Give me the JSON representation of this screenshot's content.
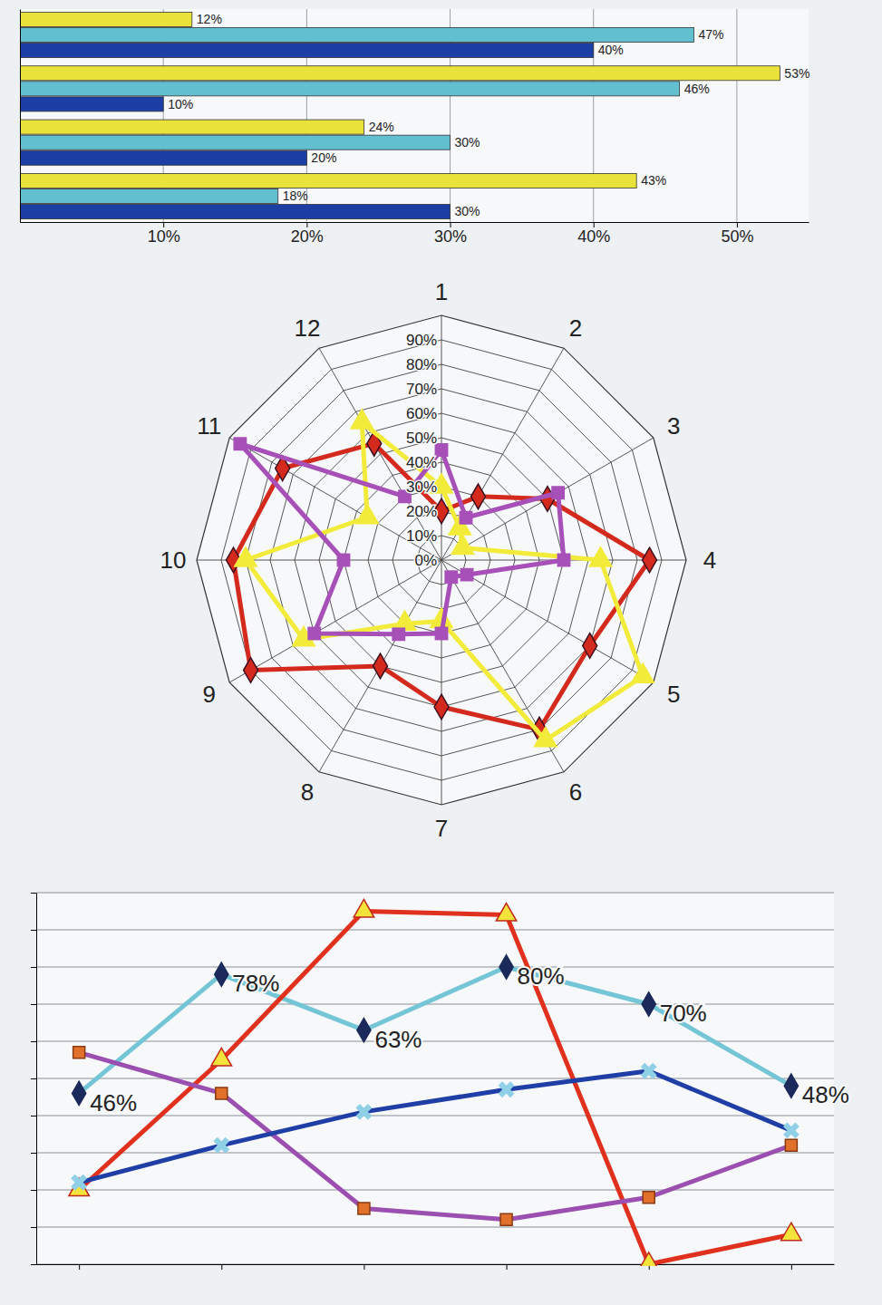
{
  "chart_data": [
    {
      "type": "bar",
      "orientation": "horizontal",
      "categories": [
        null,
        null,
        null,
        null
      ],
      "series": [
        {
          "color": "#e9e23a",
          "values": [
            12,
            53,
            24,
            43
          ],
          "value_labels": [
            "12%",
            "53%",
            "24%",
            "43%"
          ]
        },
        {
          "color": "#62bfd0",
          "values": [
            47,
            46,
            30,
            18
          ],
          "value_labels": [
            "47%",
            "46%",
            "30%",
            "18%"
          ]
        },
        {
          "color": "#1c3fa6",
          "values": [
            40,
            10,
            20,
            30
          ],
          "value_labels": [
            "40%",
            "10%",
            "20%",
            "30%"
          ]
        }
      ],
      "xlim": [
        0,
        55
      ],
      "xticks": [
        {
          "value": 10,
          "label": "10%"
        },
        {
          "value": 20,
          "label": "20%"
        },
        {
          "value": 30,
          "label": "30%"
        },
        {
          "value": 40,
          "label": "40%"
        },
        {
          "value": 50,
          "label": "50%"
        }
      ],
      "grid": true,
      "data_labels": true,
      "tick_labels": "x"
    },
    {
      "type": "radar",
      "categories": [
        "1",
        "2",
        "3",
        "4",
        "5",
        "6",
        "7",
        "8",
        "9",
        "10",
        "11",
        "12"
      ],
      "ylim": [
        0,
        100
      ],
      "yticks": [
        {
          "value": 0,
          "label": "0%"
        },
        {
          "value": 10,
          "label": "10%"
        },
        {
          "value": 20,
          "label": "20%"
        },
        {
          "value": 30,
          "label": "30%"
        },
        {
          "value": 40,
          "label": "40%"
        },
        {
          "value": 50,
          "label": "50%"
        },
        {
          "value": 60,
          "label": "60%"
        },
        {
          "value": 70,
          "label": "70%"
        },
        {
          "value": 80,
          "label": "80%"
        },
        {
          "value": 90,
          "label": "90%"
        }
      ],
      "grid": true,
      "series": [
        {
          "color": "#d42a1e",
          "marker": "diamond",
          "values": [
            20,
            30,
            50,
            85,
            70,
            80,
            60,
            50,
            90,
            85,
            75,
            55
          ]
        },
        {
          "color": "#f3eb3a",
          "marker": "triangle",
          "values": [
            30,
            15,
            10,
            65,
            95,
            85,
            25,
            30,
            65,
            80,
            35,
            65
          ]
        },
        {
          "color": "#a650b8",
          "marker": "square",
          "values": [
            45,
            20,
            55,
            50,
            12,
            8,
            30,
            35,
            60,
            40,
            95,
            30
          ]
        }
      ]
    },
    {
      "type": "line",
      "categories": [
        null,
        null,
        null,
        null,
        null,
        null
      ],
      "ylim": [
        0,
        100
      ],
      "yticks": [
        0,
        10,
        20,
        30,
        40,
        50,
        60,
        70,
        80,
        90,
        100
      ],
      "grid": true,
      "tick_labels": false,
      "data_labels": true,
      "series": [
        {
          "color": "#74c6d6",
          "marker": "diamond",
          "values": [
            46,
            78,
            63,
            80,
            70,
            48
          ],
          "value_labels": [
            "46%",
            "78%",
            "63%",
            "80%",
            "70%",
            "48%"
          ]
        },
        {
          "color": "#e0301e",
          "marker": "triangle",
          "values": [
            20,
            55,
            95,
            94,
            0,
            8
          ]
        },
        {
          "color": "#9b4fb0",
          "marker": "square",
          "values": [
            57,
            46,
            15,
            12,
            18,
            32
          ]
        },
        {
          "color": "#1f3fa6",
          "marker": "x",
          "values": [
            22,
            32,
            41,
            47,
            52,
            36
          ]
        }
      ]
    }
  ]
}
